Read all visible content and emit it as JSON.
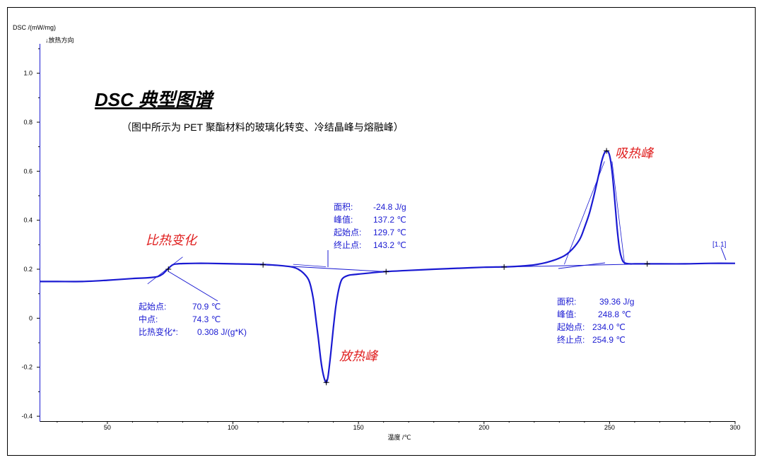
{
  "chart_data": {
    "type": "line",
    "ylabel": "DSC /(mW/mg)",
    "ylabel_note": "↓放热方向",
    "xlabel": "温度 /℃",
    "xlim": [
      23,
      300
    ],
    "ylim": [
      -0.42,
      1.12
    ],
    "x_ticks": [
      50,
      100,
      150,
      200,
      250,
      300
    ],
    "y_ticks": [
      -0.4,
      -0.2,
      0,
      0.2,
      0.4,
      0.6,
      0.8,
      1.0
    ],
    "y_tick_labels": [
      "-0.4",
      "-0.2",
      "0",
      "0.2",
      "0.4",
      "0.6",
      "0.8",
      "1.0"
    ],
    "grid": false,
    "colors": {
      "curve": "#1a1ad2",
      "annotation": "#1a1ad2",
      "callout": "#e02020",
      "axis": "#000000",
      "frame": "#000000"
    },
    "series": [
      {
        "label": "[1.1]",
        "x": [
          23,
          30,
          40,
          50,
          60,
          66,
          70,
          72,
          74,
          76,
          78,
          80,
          85,
          90,
          100,
          110,
          115,
          120,
          124,
          126,
          128,
          130,
          131,
          132,
          133,
          134,
          135,
          136,
          137,
          137.5,
          138,
          139,
          140,
          141,
          142,
          143,
          144,
          146,
          148,
          150,
          155,
          160,
          170,
          180,
          190,
          200,
          210,
          215,
          220,
          225,
          230,
          234,
          238,
          240,
          242,
          244,
          246,
          247,
          248,
          249,
          250,
          251,
          252,
          253,
          254,
          255,
          256,
          258,
          260,
          265,
          270,
          280,
          290,
          300
        ],
        "y": [
          0.15,
          0.15,
          0.15,
          0.155,
          0.162,
          0.165,
          0.17,
          0.18,
          0.2,
          0.218,
          0.222,
          0.223,
          0.224,
          0.224,
          0.222,
          0.22,
          0.218,
          0.214,
          0.208,
          0.2,
          0.185,
          0.16,
          0.13,
          0.08,
          0.0,
          -0.08,
          -0.17,
          -0.23,
          -0.262,
          -0.255,
          -0.23,
          -0.14,
          -0.04,
          0.05,
          0.11,
          0.15,
          0.165,
          0.175,
          0.178,
          0.18,
          0.185,
          0.19,
          0.195,
          0.2,
          0.204,
          0.208,
          0.21,
          0.213,
          0.218,
          0.228,
          0.245,
          0.27,
          0.32,
          0.37,
          0.43,
          0.51,
          0.6,
          0.645,
          0.675,
          0.683,
          0.665,
          0.6,
          0.49,
          0.37,
          0.28,
          0.24,
          0.226,
          0.222,
          0.222,
          0.222,
          0.222,
          0.222,
          0.224,
          0.224
        ]
      }
    ],
    "baselines": [
      {
        "x": [
          112,
          161
        ],
        "y": [
          0.218,
          0.19
        ]
      },
      {
        "x": [
          208,
          265
        ],
        "y": [
          0.209,
          0.222
        ]
      }
    ],
    "tangents": [
      {
        "x": [
          66,
          80
        ],
        "y": [
          0.14,
          0.25
        ]
      },
      {
        "x": [
          124,
          137
        ],
        "y": [
          0.22,
          0.21
        ]
      },
      {
        "x": [
          232,
          248
        ],
        "y": [
          0.22,
          0.64
        ]
      },
      {
        "x": [
          251,
          256
        ],
        "y": [
          0.64,
          0.22
        ]
      }
    ],
    "markers": [
      {
        "x": 74.3,
        "y": 0.2
      },
      {
        "x": 112,
        "y": 0.218
      },
      {
        "x": 137.2,
        "y": -0.262
      },
      {
        "x": 161,
        "y": 0.19
      },
      {
        "x": 208,
        "y": 0.209
      },
      {
        "x": 248.8,
        "y": 0.683
      },
      {
        "x": 265,
        "y": 0.222
      }
    ]
  },
  "title": {
    "main": "DSC 典型图谱",
    "subtitle": "（图中所示为 PET 聚酯材料的玻璃化转变、冷结晶峰与熔融峰）"
  },
  "callouts": {
    "glass": "比热变化",
    "exo": "放热峰",
    "endo": "吸热峰"
  },
  "annotations": {
    "glass": [
      {
        "label": "起始点:",
        "value": "70.9 ℃"
      },
      {
        "label": "中点:",
        "value": "74.3 ℃"
      },
      {
        "label": "比热变化*:",
        "value": "0.308 J/(g*K)"
      }
    ],
    "exo": [
      {
        "label": "面积:",
        "value": "-24.8 J/g"
      },
      {
        "label": "峰值:",
        "value": "137.2 ℃"
      },
      {
        "label": "起始点:",
        "value": "129.7 ℃"
      },
      {
        "label": "终止点:",
        "value": "143.2 ℃"
      }
    ],
    "endo": [
      {
        "label": "面积:",
        "value": "39.36 J/g"
      },
      {
        "label": "峰值:",
        "value": "248.8 ℃"
      },
      {
        "label": "起始点:",
        "value": "234.0 ℃"
      },
      {
        "label": "终止点:",
        "value": "254.9 ℃"
      }
    ]
  }
}
